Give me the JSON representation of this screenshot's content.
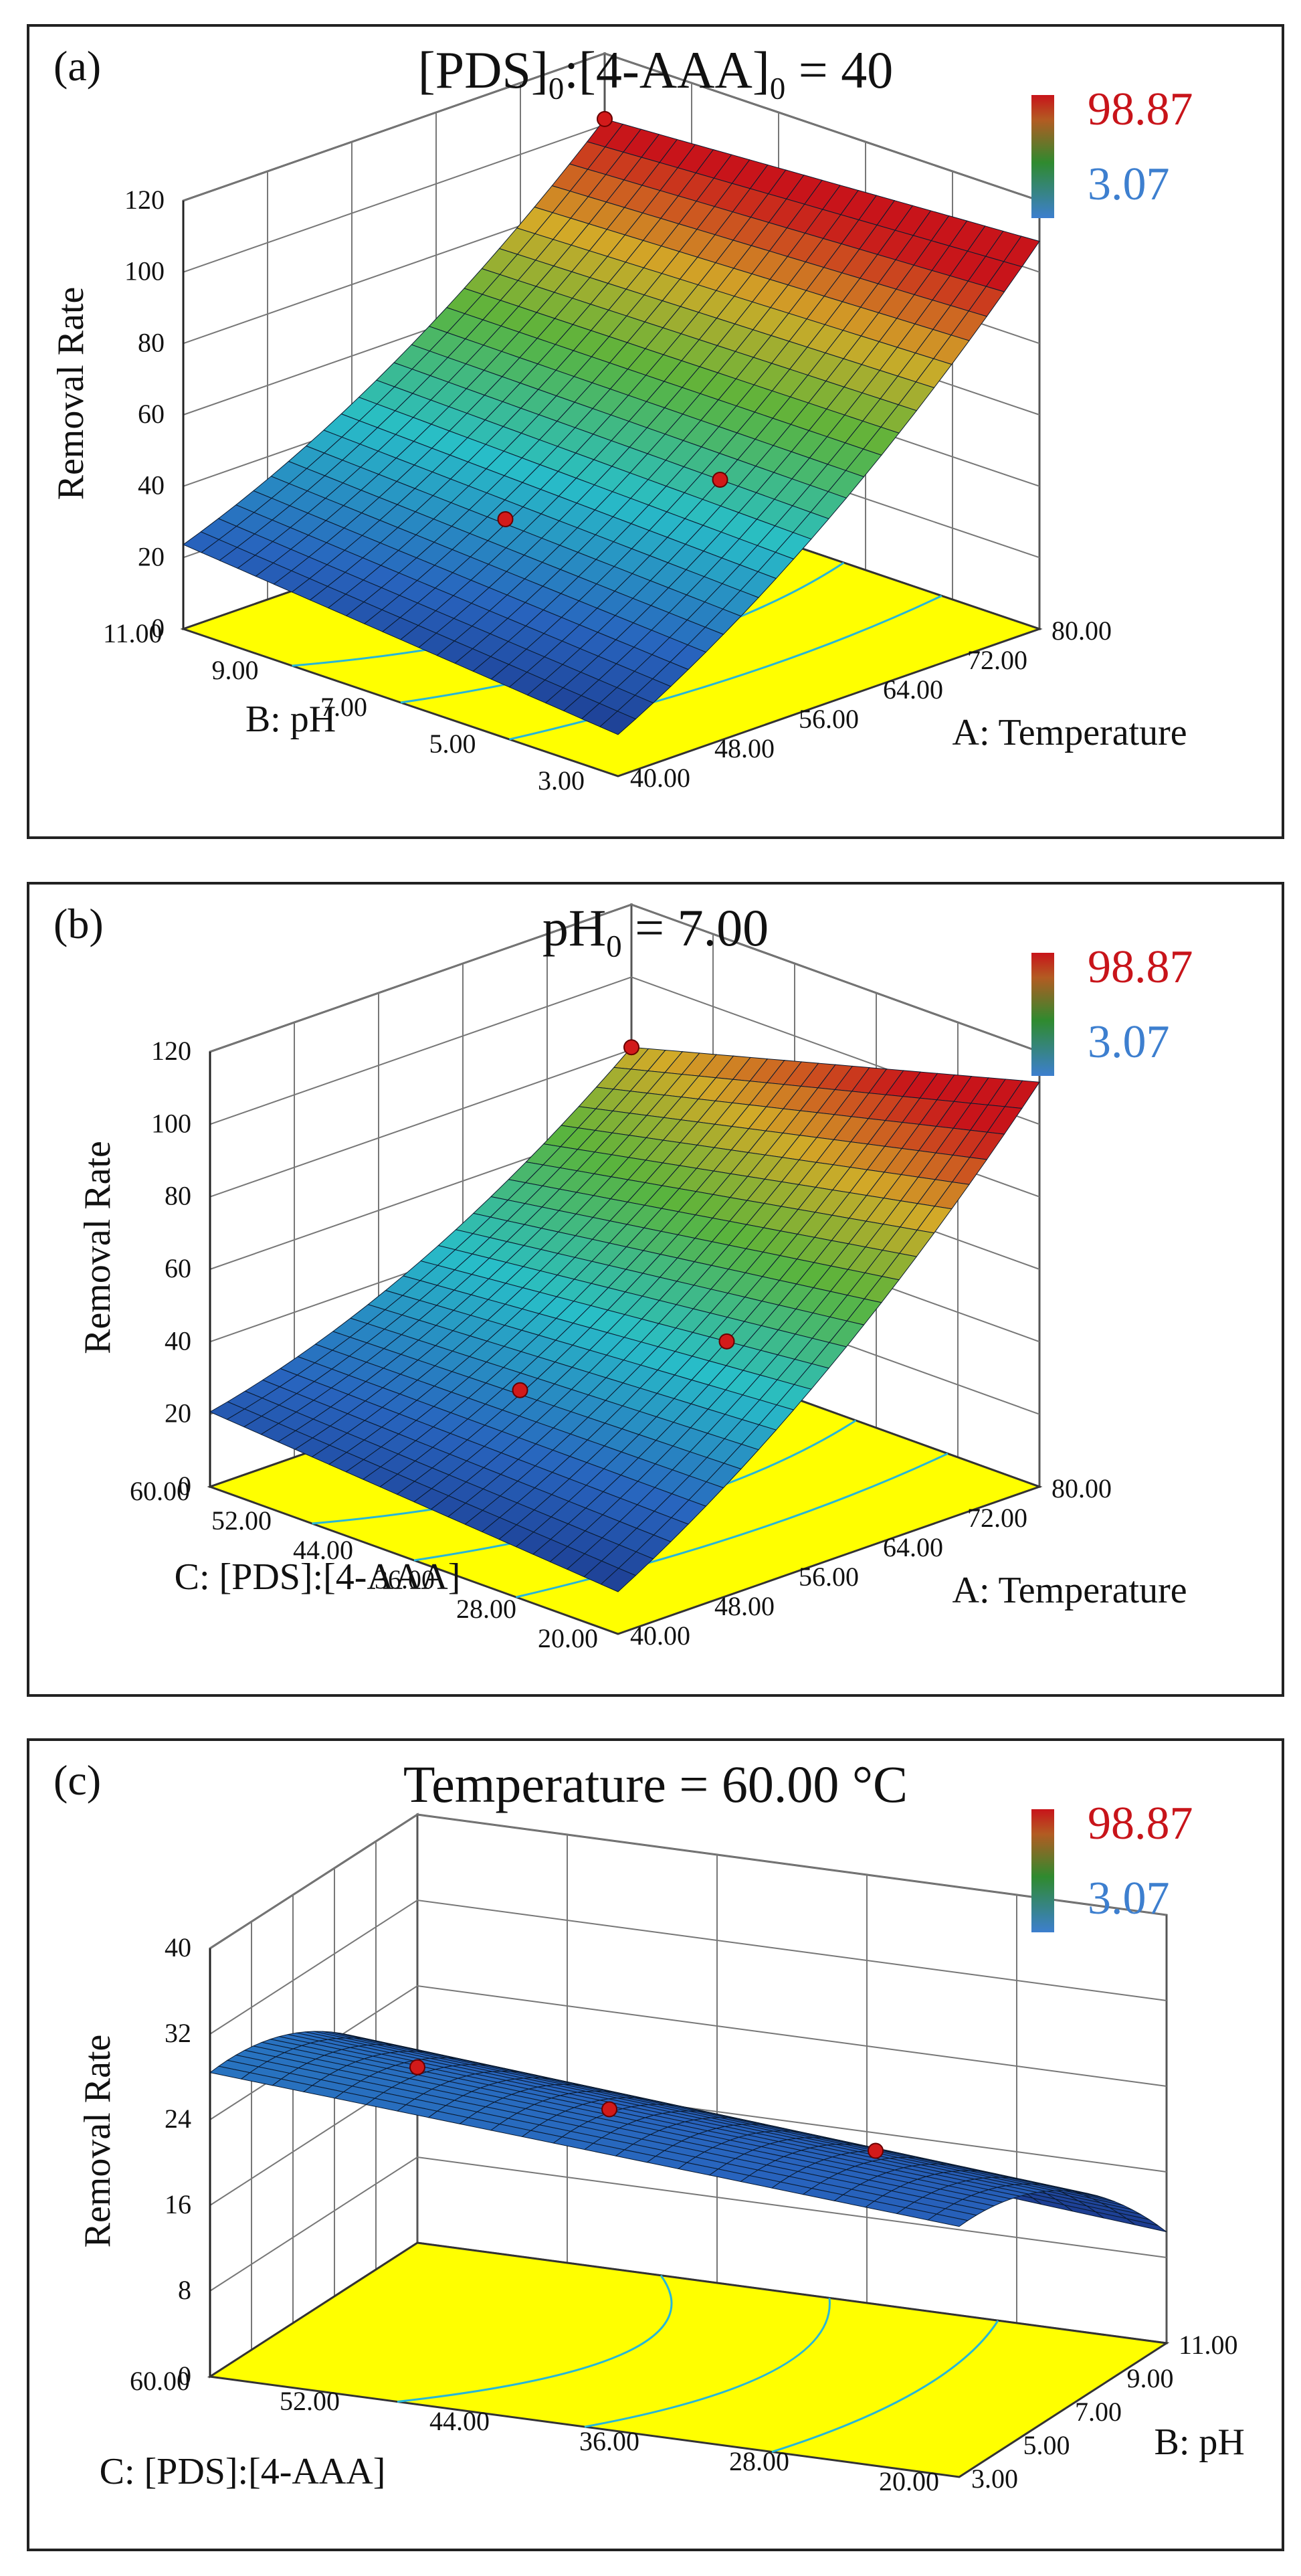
{
  "chart_data": [
    {
      "type": "surface3d",
      "panel_label": "(a)",
      "title_main": "[PDS]",
      "title_sub1": "0",
      "title_mid": ":[4-AAA]",
      "title_sub2": "0",
      "title_tail": " = 40",
      "zlabel": "Removal Rate",
      "xlabel": "A: Temperature",
      "ylabel": "B: pH",
      "z_ticks": [
        "0",
        "20",
        "40",
        "60",
        "80",
        "100",
        "120"
      ],
      "x_ticks": [
        "40.00",
        "48.00",
        "56.00",
        "64.00",
        "72.00",
        "80.00"
      ],
      "y_ticks": [
        "3.00",
        "5.00",
        "7.00",
        "9.00",
        "11.00"
      ],
      "zlim": [
        0,
        120
      ],
      "legend_max": "98.87",
      "legend_min": "3.07",
      "surface_corners_z": {
        "xmin_ymin": 3,
        "xmax_ymin": 100,
        "xmax_ymax": 93,
        "xmin_ymax": 15
      },
      "colors": {
        "high": "#c8141a",
        "low": "#3d7fcf",
        "floor": "#ffff00"
      }
    },
    {
      "type": "surface3d",
      "panel_label": "(b)",
      "title_main": "pH",
      "title_sub1": "0",
      "title_mid": "",
      "title_sub2": "",
      "title_tail": " = 7.00",
      "zlabel": "Removal Rate",
      "xlabel": "A: Temperature",
      "ylabel": "C: [PDS]:[4-AAA]",
      "z_ticks": [
        "0",
        "20",
        "40",
        "60",
        "80",
        "100",
        "120"
      ],
      "x_ticks": [
        "40.00",
        "48.00",
        "56.00",
        "64.00",
        "72.00",
        "80.00"
      ],
      "y_ticks": [
        "20.00",
        "28.00",
        "36.00",
        "44.00",
        "52.00",
        "60.00"
      ],
      "zlim": [
        0,
        120
      ],
      "legend_max": "98.87",
      "legend_min": "3.07",
      "surface_corners_z": {
        "xmin_ymin": 3,
        "xmax_ymin": 103,
        "xmax_ymax": 72,
        "xmin_ymax": 12
      },
      "colors": {
        "high": "#c8141a",
        "low": "#3d7fcf",
        "floor": "#ffff00"
      }
    },
    {
      "type": "surface3d",
      "panel_label": "(c)",
      "title_main": "Temperature = 60.00 °C",
      "title_sub1": "",
      "title_mid": "",
      "title_sub2": "",
      "title_tail": "",
      "zlabel": "Removal Rate",
      "xlabel": "B: pH",
      "ylabel": "C: [PDS]:[4-AAA]",
      "z_ticks": [
        "0",
        "8",
        "16",
        "24",
        "32",
        "40"
      ],
      "x_ticks": [
        "3.00",
        "5.00",
        "7.00",
        "9.00",
        "11.00"
      ],
      "y_ticks": [
        "20.00",
        "28.00",
        "36.00",
        "44.00",
        "52.00",
        "60.00"
      ],
      "zlim": [
        0,
        40
      ],
      "legend_max": "98.87",
      "legend_min": "3.07",
      "surface_corners_z": {
        "xmin_ymin": 27,
        "xmax_ymin": 14,
        "xmax_ymax": 20,
        "xmin_ymax": 32
      },
      "colors": {
        "high": "#c8141a",
        "low": "#3d7fcf",
        "floor": "#ffff00"
      }
    }
  ]
}
